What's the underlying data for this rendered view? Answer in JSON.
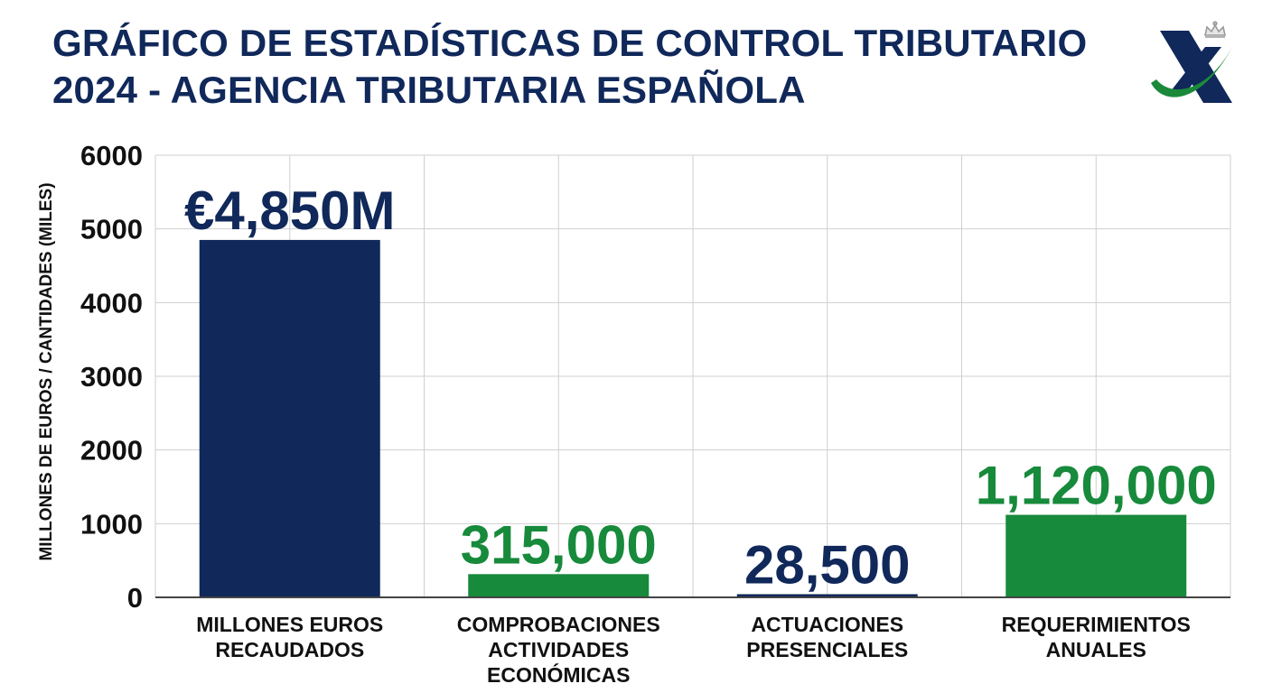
{
  "title_lines": [
    "GRÁFICO DE ESTADÍSTICAS DE CONTROL TRIBUTARIO",
    "2024 - AGENCIA TRIBUTARIA ESPAÑOLA"
  ],
  "logo": {
    "icon": "agencia-tributaria-logo",
    "colors": [
      "#10285a",
      "#1a8a3a"
    ]
  },
  "colors": {
    "navy": "#10285a",
    "green": "#178a3b",
    "grid": "#cfcfcf"
  },
  "chart_data": {
    "type": "bar",
    "ylabel": "MILLONES DE EUROS / CANTIDADES (MILES)",
    "xlabel": "",
    "ylim": [
      0,
      6000
    ],
    "yticks": [
      0,
      1000,
      2000,
      3000,
      4000,
      5000,
      6000
    ],
    "grid": true,
    "categories": [
      [
        "MILLONES EUROS",
        "RECAUDADOS"
      ],
      [
        "COMPROBACIONES",
        "ACTIVIDADES",
        "ECONÓMICAS"
      ],
      [
        "ACTUACIONES",
        "PRESENCIALES"
      ],
      [
        "REQUERIMIENTOS",
        "ANUALES"
      ]
    ],
    "values": [
      4850,
      315,
      28.5,
      1120
    ],
    "data_labels": [
      "€4,850M",
      "315,000",
      "28,500",
      "1,120,000"
    ],
    "bar_colors": [
      "#10285a",
      "#178a3b",
      "#10285a",
      "#178a3b"
    ]
  }
}
